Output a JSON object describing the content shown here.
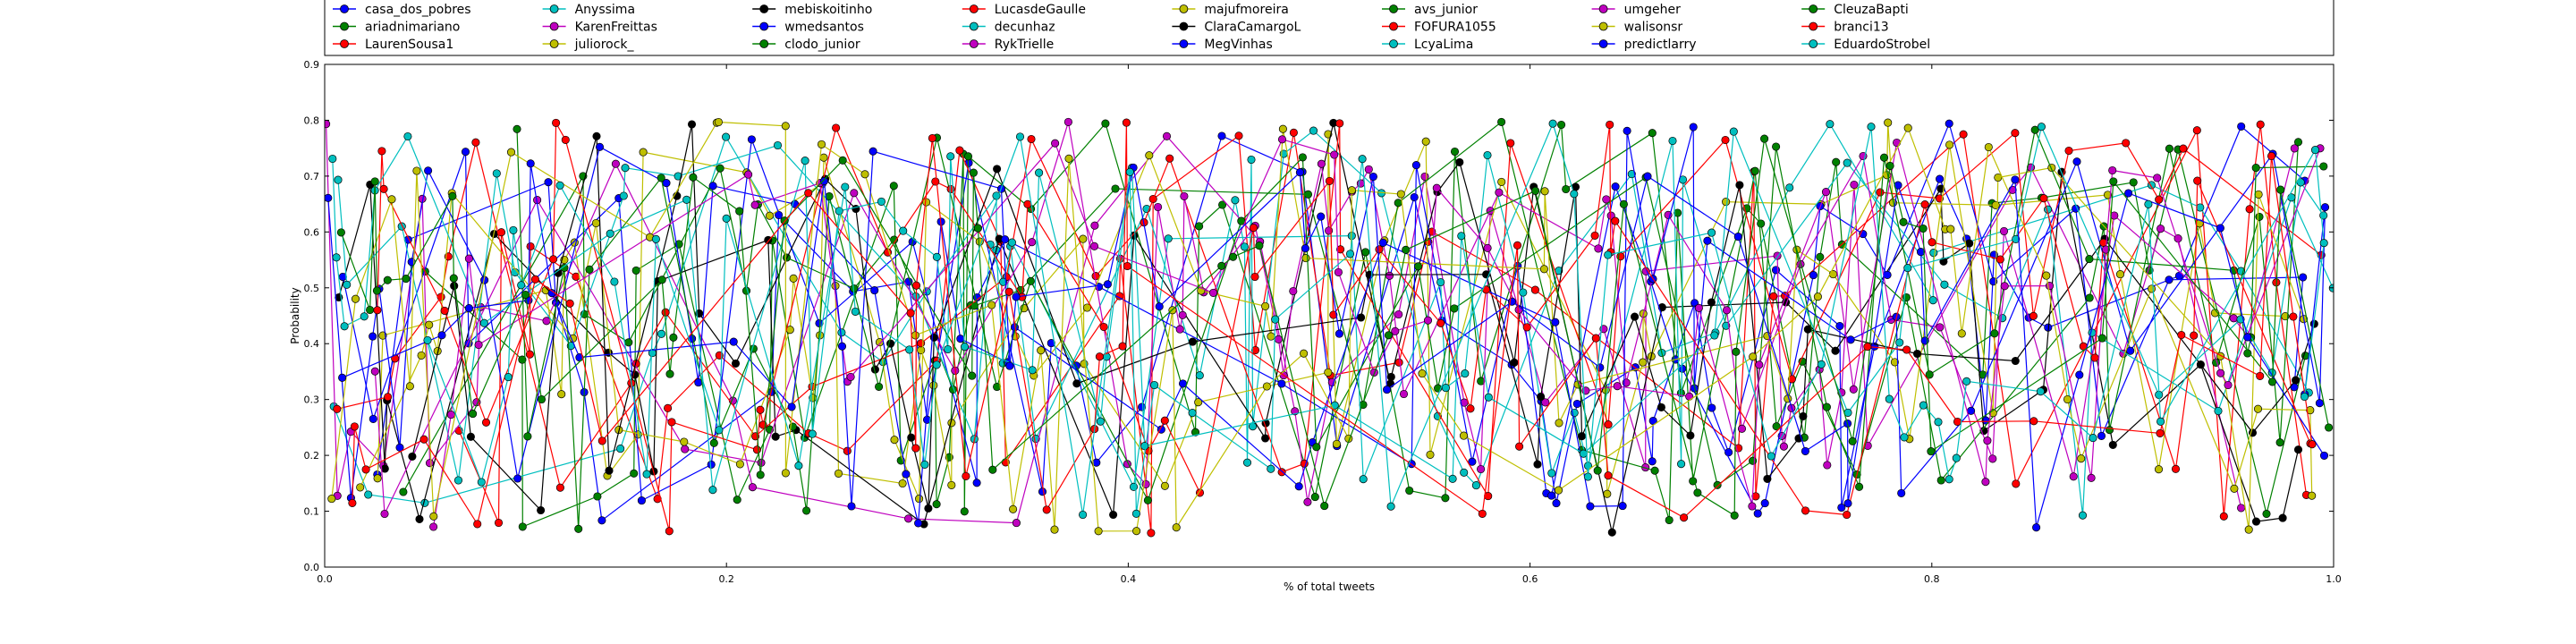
{
  "chart_data": {
    "type": "line",
    "title": "",
    "xlabel": "% of total tweets",
    "ylabel": "Probability",
    "xlim": [
      0,
      1.0
    ],
    "ylim": [
      0,
      0.9
    ],
    "x_ticks": [
      "0.0",
      "0.2",
      "0.4",
      "0.6",
      "0.8",
      "1.0"
    ],
    "y_ticks": [
      "0.0",
      "0.1",
      "0.2",
      "0.3",
      "0.4",
      "0.5",
      "0.6",
      "0.7",
      "0.8",
      "0.9"
    ],
    "grid": false,
    "legend_placement": "top",
    "series": [
      {
        "name": "casa_dos_pobres",
        "color": "#0000ff"
      },
      {
        "name": "ariadnimariano",
        "color": "#008000"
      },
      {
        "name": "LaurenSousa1",
        "color": "#ff0000"
      },
      {
        "name": "Anyssima",
        "color": "#00bfbf"
      },
      {
        "name": "KarenFreittas",
        "color": "#bf00bf"
      },
      {
        "name": "juliorock_",
        "color": "#bfbf00"
      },
      {
        "name": "mebiskoitinho",
        "color": "#000000"
      },
      {
        "name": "wmedsantos",
        "color": "#0000ff"
      },
      {
        "name": "clodo_junior",
        "color": "#008000"
      },
      {
        "name": "LucasdeGaulle",
        "color": "#ff0000"
      },
      {
        "name": "decunhaz",
        "color": "#00bfbf"
      },
      {
        "name": "RykTrielle",
        "color": "#bf00bf"
      },
      {
        "name": "majufmoreira",
        "color": "#bfbf00"
      },
      {
        "name": "ClaraCamargoL",
        "color": "#000000"
      },
      {
        "name": "MegVinhas",
        "color": "#0000ff"
      },
      {
        "name": "avs_junior",
        "color": "#008000"
      },
      {
        "name": "FOFURA1055",
        "color": "#ff0000"
      },
      {
        "name": "LcyaLima",
        "color": "#00bfbf"
      },
      {
        "name": "umgeher",
        "color": "#bf00bf"
      },
      {
        "name": "walisonsr",
        "color": "#bfbf00"
      },
      {
        "name": "predictlarry",
        "color": "#0000ff"
      },
      {
        "name": "CleuzaBapti",
        "color": "#008000"
      },
      {
        "name": "branci13",
        "color": "#ff0000"
      },
      {
        "name": "EduardoStrobel",
        "color": "#00bfbf"
      }
    ]
  }
}
